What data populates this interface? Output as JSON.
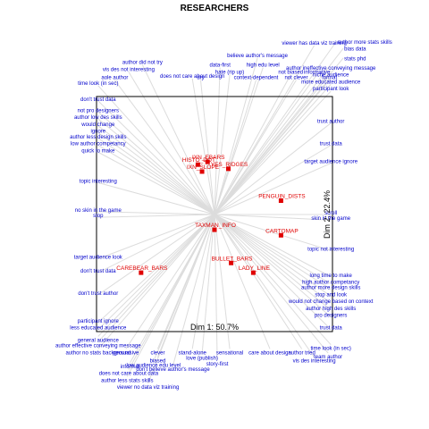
{
  "chart_data": {
    "type": "scatter",
    "title": "RESEARCHERS",
    "xlabel": "Dim 1: 50.7%",
    "ylabel": "Dim 2: 22.4%",
    "xlim": [
      -1,
      1
    ],
    "ylim": [
      -1,
      1
    ],
    "point_color": "#e00000",
    "line_color": "#dcdcdc",
    "text_color": "#0000cc",
    "points": [
      {
        "label": "IXN_EBARS",
        "x": -0.05,
        "y": 0.38
      },
      {
        "label": "HISTO_DOT",
        "x": -0.12,
        "y": 0.36
      },
      {
        "label": "YES_RIDGES",
        "x": 0.1,
        "y": 0.33
      },
      {
        "label": "IXN_SLOPE",
        "x": -0.09,
        "y": 0.31
      },
      {
        "label": "PENGUIN_DISTS",
        "x": 0.48,
        "y": 0.1
      },
      {
        "label": "TAXMAN_INFO",
        "x": 0.0,
        "y": -0.11
      },
      {
        "label": "CARTOMAP",
        "x": 0.48,
        "y": -0.15
      },
      {
        "label": "BULLET_BARS",
        "x": 0.12,
        "y": -0.35
      },
      {
        "label": "LADY_LINE",
        "x": 0.28,
        "y": -0.42
      },
      {
        "label": "CAREBEAR_BARS",
        "x": -0.53,
        "y": -0.42
      }
    ],
    "variables": [
      {
        "label": "author did not try",
        "x": -0.52,
        "y": 1.08
      },
      {
        "label": "vis des not interesting",
        "x": -0.62,
        "y": 1.03
      },
      {
        "label": "aole author",
        "x": -0.72,
        "y": 0.97
      },
      {
        "label": "does not care about design",
        "x": -0.16,
        "y": 0.98
      },
      {
        "label": "time look (in sec)",
        "x": -0.84,
        "y": 0.93
      },
      {
        "label": "don't trust data",
        "x": -0.84,
        "y": 0.82
      },
      {
        "label": "not pro designers",
        "x": -0.84,
        "y": 0.74
      },
      {
        "label": "author low des skills",
        "x": -0.84,
        "y": 0.69
      },
      {
        "label": "would change",
        "x": -0.84,
        "y": 0.64
      },
      {
        "label": "ignore",
        "x": -0.84,
        "y": 0.59
      },
      {
        "label": "author less design skills",
        "x": -0.84,
        "y": 0.55
      },
      {
        "label": "low author competancy",
        "x": -0.84,
        "y": 0.5
      },
      {
        "label": "quick to make",
        "x": -0.84,
        "y": 0.45
      },
      {
        "label": "topic interesting",
        "x": -0.84,
        "y": 0.23
      },
      {
        "label": "no skin in the game",
        "x": -0.84,
        "y": 0.02
      },
      {
        "label": "stop",
        "x": -0.84,
        "y": -0.02
      },
      {
        "label": "target audience look",
        "x": -0.84,
        "y": -0.32
      },
      {
        "label": "don't trust data",
        "x": -0.84,
        "y": -0.42
      },
      {
        "label": "don't trust author",
        "x": -0.84,
        "y": -0.58
      },
      {
        "label": "participant ignore",
        "x": -0.84,
        "y": -0.78
      },
      {
        "label": "less educated audience",
        "x": -0.84,
        "y": -0.83
      },
      {
        "label": "general audience",
        "x": -0.84,
        "y": -0.88
      },
      {
        "label": "author effective conveying message",
        "x": -0.84,
        "y": -0.92
      },
      {
        "label": "author no stats background",
        "x": -0.84,
        "y": -0.97
      },
      {
        "label": "persuasive",
        "x": -0.64,
        "y": -0.97
      },
      {
        "label": "clever",
        "x": -0.41,
        "y": -0.97
      },
      {
        "label": "biased",
        "x": -0.41,
        "y": -1.03
      },
      {
        "label": "informal",
        "x": -0.61,
        "y": -1.07
      },
      {
        "label": "does not care about data",
        "x": -0.62,
        "y": -1.12
      },
      {
        "label": "author less stats skills",
        "x": -0.63,
        "y": -1.17
      },
      {
        "label": "viewer no data viz training",
        "x": -0.48,
        "y": -1.22
      },
      {
        "label": "low audience edu level",
        "x": -0.44,
        "y": -1.06
      },
      {
        "label": "don't believe author's message",
        "x": -0.3,
        "y": -1.09
      },
      {
        "label": "stand-alone",
        "x": -0.16,
        "y": -0.97
      },
      {
        "label": "love (publish)",
        "x": -0.09,
        "y": -1.01
      },
      {
        "label": "story-first",
        "x": 0.02,
        "y": -1.05
      },
      {
        "label": "sensational",
        "x": 0.11,
        "y": -0.97
      },
      {
        "label": "care about design",
        "x": 0.4,
        "y": -0.97
      },
      {
        "label": "author tried",
        "x": 0.63,
        "y": -0.97
      },
      {
        "label": "team author",
        "x": 0.82,
        "y": -1.0
      },
      {
        "label": "vis des interesting",
        "x": 0.72,
        "y": -1.03
      },
      {
        "label": "dry",
        "x": -0.1,
        "y": 0.97
      },
      {
        "label": "data-first",
        "x": 0.04,
        "y": 1.06
      },
      {
        "label": "hate (rip up)",
        "x": 0.11,
        "y": 1.01
      },
      {
        "label": "context-dependent",
        "x": 0.3,
        "y": 0.97
      },
      {
        "label": "believe author's message",
        "x": 0.31,
        "y": 1.13
      },
      {
        "label": "high edu level",
        "x": 0.35,
        "y": 1.06
      },
      {
        "label": "not biased",
        "x": 0.55,
        "y": 1.01
      },
      {
        "label": "not clever",
        "x": 0.59,
        "y": 0.97
      },
      {
        "label": "viewer has data viz training",
        "x": 0.72,
        "y": 1.22
      },
      {
        "label": "author more stats skills",
        "x": 0.88,
        "y": 1.25
      },
      {
        "label": "bias data",
        "x": 0.93,
        "y": 1.2
      },
      {
        "label": "stats phd",
        "x": 0.93,
        "y": 1.13
      },
      {
        "label": "informative",
        "x": 0.74,
        "y": 1.01
      },
      {
        "label": "format",
        "x": 0.83,
        "y": 0.97
      },
      {
        "label": "author ineffective conveying message",
        "x": 0.84,
        "y": 1.04
      },
      {
        "label": "niche audience",
        "x": 0.84,
        "y": 0.99
      },
      {
        "label": "more educated audience",
        "x": 0.84,
        "y": 0.94
      },
      {
        "label": "participant look",
        "x": 0.84,
        "y": 0.89
      },
      {
        "label": "trust author",
        "x": 0.84,
        "y": 0.66
      },
      {
        "label": "trust data",
        "x": 0.84,
        "y": 0.5
      },
      {
        "label": "target audience ignore",
        "x": 0.84,
        "y": 0.37
      },
      {
        "label": "scroll",
        "x": 0.84,
        "y": 0.0
      },
      {
        "label": "skin in the game",
        "x": 0.84,
        "y": -0.04
      },
      {
        "label": "topic not interesting",
        "x": 0.84,
        "y": -0.26
      },
      {
        "label": "long time to make",
        "x": 0.84,
        "y": -0.45
      },
      {
        "label": "high author competancy",
        "x": 0.84,
        "y": -0.5
      },
      {
        "label": "author more design skills",
        "x": 0.84,
        "y": -0.54
      },
      {
        "label": "stop and look",
        "x": 0.84,
        "y": -0.59
      },
      {
        "label": "would not change based on context",
        "x": 0.84,
        "y": -0.64
      },
      {
        "label": "author high des skills",
        "x": 0.84,
        "y": -0.69
      },
      {
        "label": "pro designers",
        "x": 0.84,
        "y": -0.74
      },
      {
        "label": "trust data",
        "x": 0.84,
        "y": -0.83
      },
      {
        "label": "time look (in sec)",
        "x": 0.84,
        "y": -0.94
      }
    ]
  }
}
